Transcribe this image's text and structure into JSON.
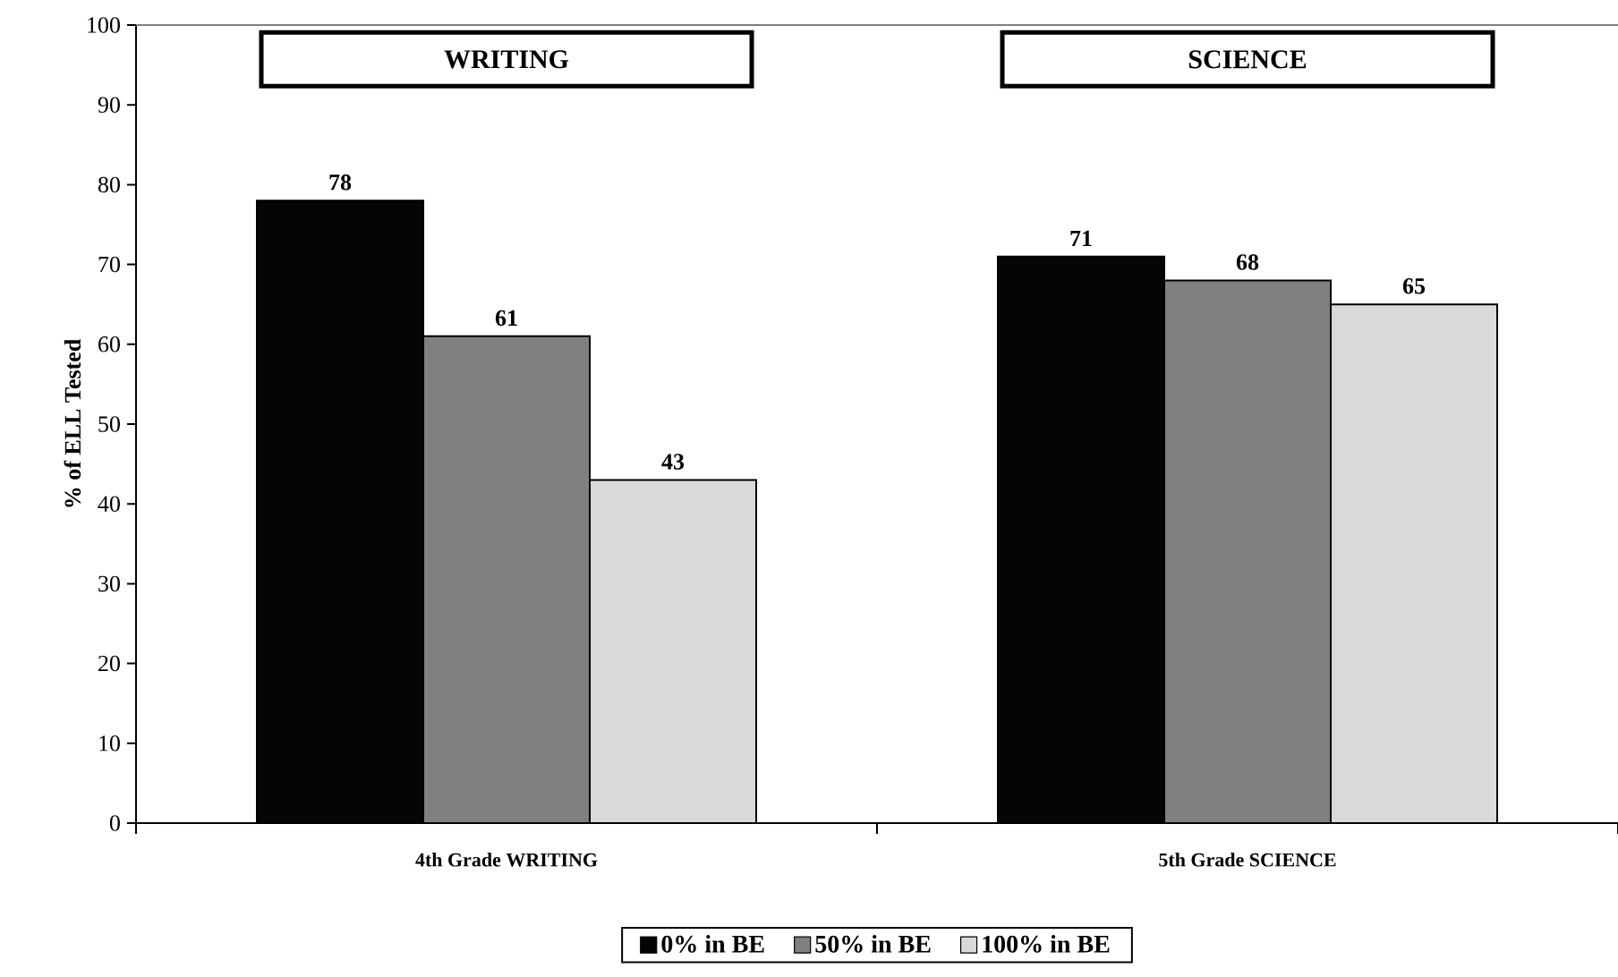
{
  "chart_data": {
    "type": "bar",
    "ylabel": "% of ELL Tested",
    "categories": [
      "4th Grade WRITING",
      "5th Grade SCIENCE"
    ],
    "series": [
      {
        "name": "0% in BE",
        "color": "#050505",
        "values": [
          78,
          71
        ]
      },
      {
        "name": "50% in BE",
        "color": "#808080",
        "values": [
          61,
          68
        ]
      },
      {
        "name": "100% in BE",
        "color": "#d9d9d9",
        "values": [
          43,
          65
        ]
      }
    ],
    "ylim": [
      0,
      100
    ],
    "yticks": [
      0,
      10,
      20,
      30,
      40,
      50,
      60,
      70,
      80,
      90,
      100
    ],
    "data_labels": true,
    "legend": "bottom",
    "grid": false,
    "annotations": [
      "WRITING",
      "SCIENCE"
    ]
  }
}
